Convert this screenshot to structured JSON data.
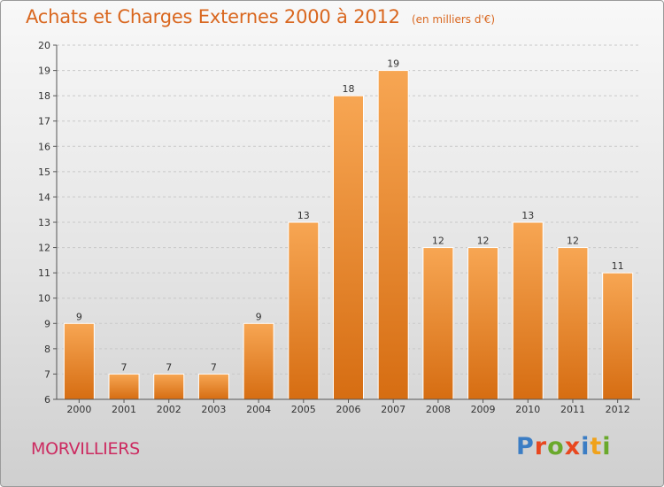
{
  "title": "Achats et Charges Externes 2000 à 2012",
  "subtitle": "(en milliers d'€)",
  "commune": "MORVILLIERS",
  "logo": {
    "text": "Proxiti",
    "colors": [
      "#3b7dc4",
      "#e8471f",
      "#6aa92c",
      "#e8471f",
      "#3b7dc4",
      "#f0a21b",
      "#6aa92c"
    ]
  },
  "colors": {
    "bar": "#f08a2c",
    "bar_light": "#f7a653",
    "bar_dark": "#d66d12",
    "title": "#d9671f",
    "commune": "#cc2a60"
  },
  "chart_data": {
    "type": "bar",
    "categories": [
      "2000",
      "2001",
      "2002",
      "2003",
      "2004",
      "2005",
      "2006",
      "2007",
      "2008",
      "2009",
      "2010",
      "2011",
      "2012"
    ],
    "values": [
      9,
      7,
      7,
      7,
      9,
      13,
      18,
      19,
      12,
      12,
      13,
      12,
      11
    ],
    "ylim": [
      6,
      20
    ],
    "yticks": [
      6,
      7,
      8,
      9,
      10,
      11,
      12,
      13,
      14,
      15,
      16,
      17,
      18,
      19,
      20
    ],
    "xlabel": "",
    "ylabel": "",
    "grid": true,
    "data_labels": true
  }
}
